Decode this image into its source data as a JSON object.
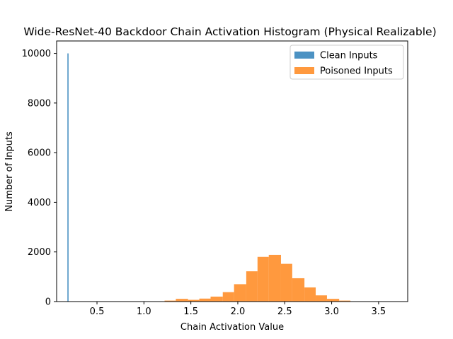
{
  "chart_data": {
    "type": "histogram",
    "title": "Wide-ResNet-40 Backdoor Chain Activation Histogram (Physical Realizable)",
    "xlabel": "Chain Activation Value",
    "ylabel": "Number of Inputs",
    "xlim": [
      0.07,
      3.81
    ],
    "ylim": [
      0,
      10500
    ],
    "x_ticks": [
      0.5,
      1.0,
      1.5,
      2.0,
      2.5,
      3.0,
      3.5
    ],
    "x_tick_labels": [
      "0.5",
      "1.0",
      "1.5",
      "2.0",
      "2.5",
      "3.0",
      "3.5"
    ],
    "y_ticks": [
      0,
      2000,
      4000,
      6000,
      8000,
      10000
    ],
    "y_tick_labels": [
      "0",
      "2000",
      "4000",
      "6000",
      "8000",
      "10000"
    ],
    "grid": false,
    "legend_position": "top-right",
    "series": [
      {
        "name": "Clean Inputs",
        "color": "#1f77b4",
        "opacity": 0.8,
        "bins": [
          {
            "x0": 0.185,
            "x1": 0.195,
            "count": 10000
          }
        ]
      },
      {
        "name": "Poisoned Inputs",
        "color": "#ff7f0e",
        "opacity": 0.8,
        "bins": [
          {
            "x0": 1.22,
            "x1": 1.34,
            "count": 40
          },
          {
            "x0": 1.34,
            "x1": 1.47,
            "count": 110
          },
          {
            "x0": 1.47,
            "x1": 1.59,
            "count": 70
          },
          {
            "x0": 1.59,
            "x1": 1.71,
            "count": 120
          },
          {
            "x0": 1.71,
            "x1": 1.84,
            "count": 200
          },
          {
            "x0": 1.84,
            "x1": 1.96,
            "count": 380
          },
          {
            "x0": 1.96,
            "x1": 2.09,
            "count": 700
          },
          {
            "x0": 2.09,
            "x1": 2.21,
            "count": 1220
          },
          {
            "x0": 2.21,
            "x1": 2.33,
            "count": 1800
          },
          {
            "x0": 2.33,
            "x1": 2.46,
            "count": 1880
          },
          {
            "x0": 2.46,
            "x1": 2.58,
            "count": 1520
          },
          {
            "x0": 2.58,
            "x1": 2.71,
            "count": 940
          },
          {
            "x0": 2.71,
            "x1": 2.83,
            "count": 570
          },
          {
            "x0": 2.83,
            "x1": 2.95,
            "count": 250
          },
          {
            "x0": 2.95,
            "x1": 3.08,
            "count": 110
          },
          {
            "x0": 3.08,
            "x1": 3.2,
            "count": 40
          },
          {
            "x0": 3.2,
            "x1": 3.32,
            "count": 10
          },
          {
            "x0": 3.32,
            "x1": 3.45,
            "count": 5
          },
          {
            "x0": 3.45,
            "x1": 3.57,
            "count": 3
          },
          {
            "x0": 3.57,
            "x1": 3.7,
            "count": 2
          }
        ]
      }
    ]
  }
}
